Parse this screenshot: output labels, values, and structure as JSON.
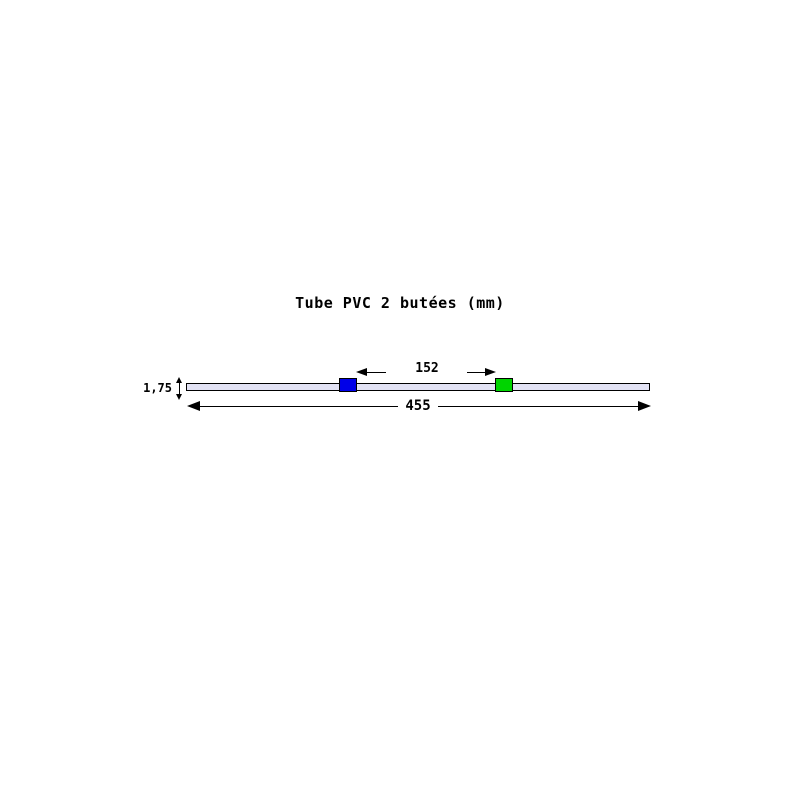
{
  "title": "Tube PVC 2 butées (mm)",
  "diagram": {
    "dimensions": {
      "stop_spacing": "152",
      "total_length": "455",
      "tube_thickness": "1,75"
    },
    "colors": {
      "tube_fill": "#e2e2f4",
      "stop_left_blue": "#0000e8",
      "stop_right_green": "#00d400",
      "line": "#000000"
    }
  }
}
